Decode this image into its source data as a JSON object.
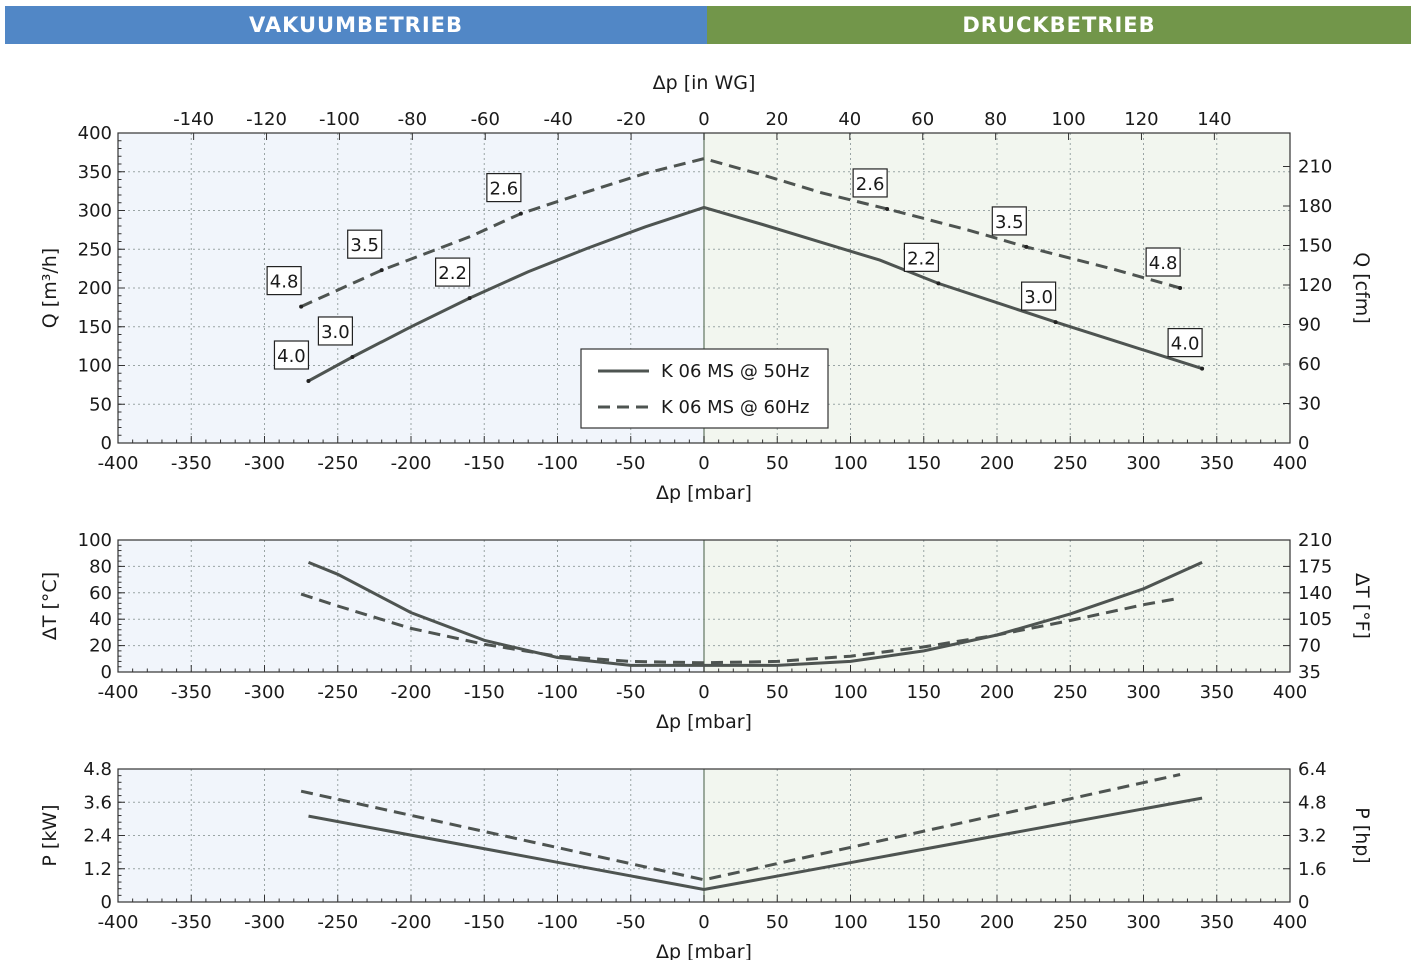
{
  "header": {
    "vacuum_label": "VAKUUMBETRIEB",
    "pressure_label": "DRUCKBETRIEB"
  },
  "colors": {
    "vacuum": "#5187c6",
    "pressure": "#72964a",
    "vacuum_bg": "#f1f5fb",
    "pressure_bg": "#f2f6ef",
    "curve": "#4e5451"
  },
  "legend": {
    "items": [
      "K 06 MS @ 50Hz",
      "K 06 MS @ 60Hz"
    ]
  },
  "chart_data": [
    {
      "type": "line",
      "xlabel": "Δp [mbar]",
      "ylabel": "Q [m³/h]",
      "x2label": "Δp [in WG]",
      "y2label": "Q [cfm]",
      "xlim": [
        -400,
        400
      ],
      "ylim": [
        0,
        400
      ],
      "xticks": [
        "-400",
        "-350",
        "-300",
        "-250",
        "-200",
        "-150",
        "-100",
        "-50",
        "0",
        "50",
        "100",
        "150",
        "200",
        "250",
        "300",
        "350",
        "400"
      ],
      "yticks": [
        "0",
        "50",
        "100",
        "150",
        "200",
        "250",
        "300",
        "350",
        "400"
      ],
      "x2ticks": [
        "-140",
        "-120",
        "-100",
        "-80",
        "-60",
        "-40",
        "-20",
        "0",
        "20",
        "40",
        "60",
        "80",
        "100",
        "120",
        "140"
      ],
      "y2ticks": [
        "0",
        "30",
        "60",
        "90",
        "120",
        "150",
        "180",
        "210"
      ],
      "grid": true,
      "legend_position": "lower-center",
      "series": [
        {
          "name": "K 06 MS @ 50Hz",
          "style": "solid",
          "x": [
            -270,
            -240,
            -200,
            -160,
            -120,
            -80,
            -40,
            0,
            40,
            80,
            120,
            160,
            200,
            240,
            280,
            340
          ],
          "y": [
            80,
            111,
            150,
            187,
            221,
            251,
            279,
            304,
            282,
            259,
            236,
            206,
            181,
            156,
            132,
            96
          ]
        },
        {
          "name": "K 06 MS @ 60Hz",
          "style": "dashed",
          "x": [
            -275,
            -220,
            -160,
            -125,
            -80,
            -40,
            0,
            40,
            80,
            125,
            180,
            220,
            280,
            325
          ],
          "y": [
            176,
            223,
            266,
            296,
            324,
            348,
            367,
            346,
            323,
            302,
            275,
            253,
            224,
            200
          ]
        }
      ],
      "annotations": [
        {
          "text": "4.8",
          "x": -275,
          "y": 176
        },
        {
          "text": "3.5",
          "x": -220,
          "y": 223
        },
        {
          "text": "2.6",
          "x": -125,
          "y": 296
        },
        {
          "text": "4.0",
          "x": -270,
          "y": 80
        },
        {
          "text": "3.0",
          "x": -240,
          "y": 111
        },
        {
          "text": "2.2",
          "x": -160,
          "y": 187
        },
        {
          "text": "2.6",
          "x": 125,
          "y": 302
        },
        {
          "text": "3.5",
          "x": 220,
          "y": 253
        },
        {
          "text": "4.8",
          "x": 325,
          "y": 200
        },
        {
          "text": "2.2",
          "x": 160,
          "y": 206
        },
        {
          "text": "3.0",
          "x": 240,
          "y": 156
        },
        {
          "text": "4.0",
          "x": 340,
          "y": 96
        }
      ]
    },
    {
      "type": "line",
      "xlabel": "Δp [mbar]",
      "ylabel": "ΔT [°C]",
      "y2label": "ΔT [°F]",
      "xlim": [
        -400,
        400
      ],
      "ylim": [
        0,
        100
      ],
      "xticks": [
        "-400",
        "-350",
        "-300",
        "-250",
        "-200",
        "-150",
        "-100",
        "-50",
        "0",
        "50",
        "100",
        "150",
        "200",
        "250",
        "300",
        "350",
        "400"
      ],
      "yticks": [
        "0",
        "20",
        "40",
        "60",
        "80",
        "100"
      ],
      "y2ticks": [
        "35",
        "70",
        "105",
        "140",
        "175",
        "210"
      ],
      "grid": true,
      "series": [
        {
          "name": "K 06 MS @ 50Hz",
          "style": "solid",
          "x": [
            -270,
            -250,
            -200,
            -150,
            -100,
            -50,
            0,
            50,
            100,
            150,
            200,
            250,
            300,
            340
          ],
          "y": [
            83,
            74,
            45,
            24,
            11,
            5,
            5,
            5,
            8,
            16,
            28,
            44,
            63,
            83
          ]
        },
        {
          "name": "K 06 MS @ 60Hz",
          "style": "dashed",
          "x": [
            -275,
            -250,
            -200,
            -150,
            -100,
            -50,
            0,
            50,
            100,
            150,
            200,
            250,
            300,
            325
          ],
          "y": [
            59,
            50,
            33,
            21,
            12,
            8,
            7,
            8,
            12,
            19,
            28,
            39,
            51,
            56
          ]
        }
      ]
    },
    {
      "type": "line",
      "xlabel": "Δp [mbar]",
      "ylabel": "P [kW]",
      "y2label": "P [hp]",
      "xlim": [
        -400,
        400
      ],
      "ylim": [
        0,
        4.8
      ],
      "xticks": [
        "-400",
        "-350",
        "-300",
        "-250",
        "-200",
        "-150",
        "-100",
        "-50",
        "0",
        "50",
        "100",
        "150",
        "200",
        "250",
        "300",
        "350",
        "400"
      ],
      "yticks": [
        "0",
        "1.2",
        "2.4",
        "3.6",
        "4.8"
      ],
      "y2ticks": [
        "0",
        "1.6",
        "3.2",
        "4.8",
        "6.4"
      ],
      "grid": true,
      "series": [
        {
          "name": "K 06 MS @ 50Hz",
          "style": "solid",
          "x": [
            -270,
            0,
            340
          ],
          "y": [
            3.1,
            0.45,
            3.75
          ]
        },
        {
          "name": "K 06 MS @ 60Hz",
          "style": "dashed",
          "x": [
            -275,
            0,
            325
          ],
          "y": [
            4.0,
            0.8,
            4.6
          ]
        }
      ]
    }
  ]
}
